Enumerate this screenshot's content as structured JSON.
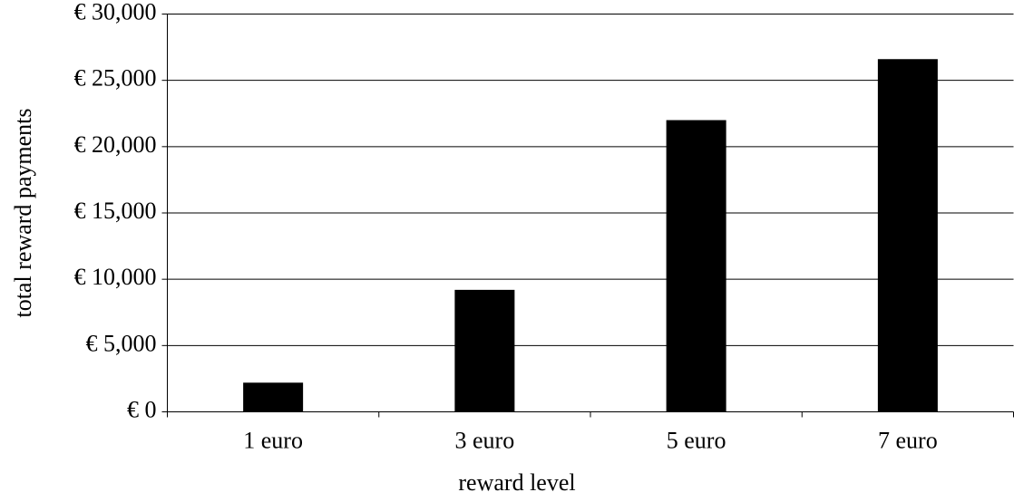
{
  "chart_data": {
    "type": "bar",
    "x_label": "reward level",
    "y_label": "total reward payments",
    "categories": [
      "1 euro",
      "3 euro",
      "5 euro",
      "7 euro"
    ],
    "values": [
      2200,
      9200,
      22000,
      26600
    ],
    "color": "#000000",
    "ylim": [
      0,
      30000
    ],
    "yticks": [
      {
        "value": 0,
        "label": "€ 0"
      },
      {
        "value": 5000,
        "label": "€ 5,000"
      },
      {
        "value": 10000,
        "label": "€ 10,000"
      },
      {
        "value": 15000,
        "label": "€ 15,000"
      },
      {
        "value": 20000,
        "label": "€ 20,000"
      },
      {
        "value": 25000,
        "label": "€ 25,000"
      },
      {
        "value": 30000,
        "label": "€ 30,000"
      }
    ],
    "grid": true
  }
}
